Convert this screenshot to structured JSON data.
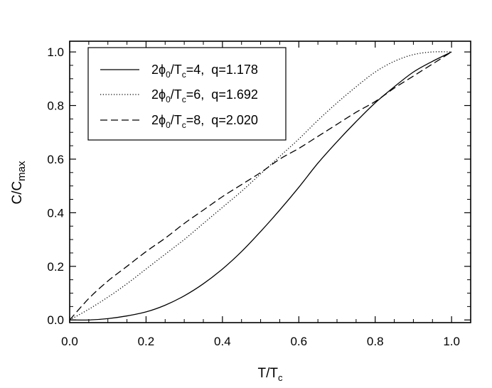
{
  "chart_data": {
    "type": "line",
    "xlabel": {
      "main": "T/T",
      "sub": "c"
    },
    "ylabel": {
      "main": "C/C",
      "sub": "max"
    },
    "xlim": [
      0.0,
      1.05
    ],
    "ylim": [
      -0.01,
      1.04
    ],
    "x_ticks": [
      "0.0",
      "0.2",
      "0.4",
      "0.6",
      "0.8",
      "1.0"
    ],
    "y_ticks": [
      "0.0",
      "0.2",
      "0.4",
      "0.6",
      "0.8",
      "1.0"
    ],
    "grid": false,
    "legend_position": "top-left",
    "series": [
      {
        "name": "2ϕ₀/Tᴄ=4,  q=1.178",
        "legend": {
          "p1": "2ϕ",
          "p1_sub": "0",
          "p2": "/T",
          "p2_sub": "c",
          "p3": "=4,  q=1.178"
        },
        "dash": "solid",
        "x": [
          0.0,
          0.05,
          0.1,
          0.15,
          0.2,
          0.25,
          0.3,
          0.35,
          0.4,
          0.45,
          0.5,
          0.55,
          0.6,
          0.65,
          0.7,
          0.75,
          0.8,
          0.85,
          0.9,
          0.95,
          1.0
        ],
        "y": [
          0.0,
          0.0,
          0.005,
          0.015,
          0.03,
          0.055,
          0.09,
          0.135,
          0.19,
          0.255,
          0.33,
          0.41,
          0.495,
          0.585,
          0.665,
          0.74,
          0.81,
          0.87,
          0.925,
          0.965,
          1.0
        ]
      },
      {
        "name": "2ϕ₀/Tᴄ=6,  q=1.692",
        "legend": {
          "p1": "2ϕ",
          "p1_sub": "0",
          "p2": "/T",
          "p2_sub": "c",
          "p3": "=6,  q=1.692"
        },
        "dash": "dotted",
        "x": [
          0.0,
          0.05,
          0.1,
          0.15,
          0.2,
          0.25,
          0.3,
          0.35,
          0.4,
          0.45,
          0.5,
          0.55,
          0.6,
          0.65,
          0.7,
          0.75,
          0.8,
          0.85,
          0.9,
          0.95,
          1.0
        ],
        "y": [
          0.0,
          0.04,
          0.085,
          0.135,
          0.19,
          0.245,
          0.3,
          0.36,
          0.42,
          0.48,
          0.545,
          0.61,
          0.675,
          0.745,
          0.81,
          0.87,
          0.925,
          0.965,
          0.99,
          1.0,
          1.0
        ]
      },
      {
        "name": "2ϕ₀/Tᴄ=8,  q=2.020",
        "legend": {
          "p1": "2ϕ",
          "p1_sub": "0",
          "p2": "/T",
          "p2_sub": "c",
          "p3": "=8,  q=2.020"
        },
        "dash": "dashed",
        "x": [
          0.0,
          0.05,
          0.1,
          0.15,
          0.2,
          0.25,
          0.3,
          0.35,
          0.4,
          0.45,
          0.5,
          0.55,
          0.6,
          0.65,
          0.7,
          0.75,
          0.8,
          0.85,
          0.9,
          0.95,
          1.0
        ],
        "y": [
          0.0,
          0.08,
          0.145,
          0.2,
          0.255,
          0.305,
          0.36,
          0.41,
          0.46,
          0.505,
          0.55,
          0.6,
          0.64,
          0.685,
          0.73,
          0.775,
          0.815,
          0.865,
          0.91,
          0.955,
          1.0
        ]
      }
    ]
  }
}
